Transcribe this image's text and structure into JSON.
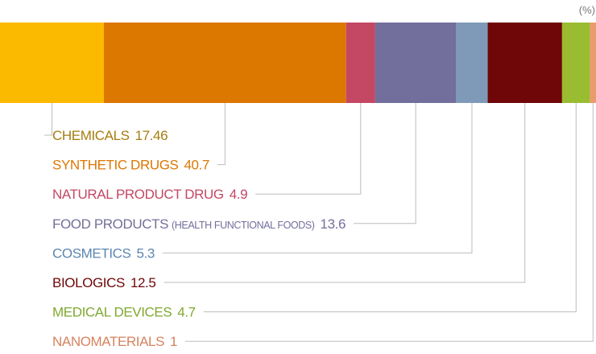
{
  "chart_data": {
    "type": "bar",
    "stacked": true,
    "orientation": "horizontal",
    "unit": "(%)",
    "total": 100,
    "legend_placement": "below",
    "categories": [
      {
        "name": "CHEMICALS",
        "note": "",
        "value": 17.46,
        "display": "17.46",
        "color": "#FBB900"
      },
      {
        "name": "SYNTHETIC DRUGS",
        "note": "",
        "value": 40.7,
        "display": "40.7",
        "color": "#DC7700"
      },
      {
        "name": "NATURAL PRODUCT DRUG",
        "note": "",
        "value": 4.9,
        "display": "4.9",
        "color": "#C44764"
      },
      {
        "name": "FOOD PRODUCTS",
        "note": "(HEALTH FUNCTIONAL FOODS)",
        "value": 13.6,
        "display": "13.6",
        "color": "#726F9C"
      },
      {
        "name": "COSMETICS",
        "note": "",
        "value": 5.3,
        "display": "5.3",
        "color": "#7F9AB8"
      },
      {
        "name": "BIOLOGICS",
        "note": "",
        "value": 12.5,
        "display": "12.5",
        "color": "#6F0607"
      },
      {
        "name": "MEDICAL DEVICES",
        "note": "",
        "value": 4.7,
        "display": "4.7",
        "color": "#9ABC30"
      },
      {
        "name": "NANOMATERIALS",
        "note": "",
        "value": 1,
        "display": "1",
        "color": "#EB9A6C"
      }
    ],
    "label_colors": [
      "#A57C0E",
      "#DC7700",
      "#C44764",
      "#726F9C",
      "#5C85B1",
      "#6F0607",
      "#7FA830",
      "#D5835F"
    ]
  }
}
